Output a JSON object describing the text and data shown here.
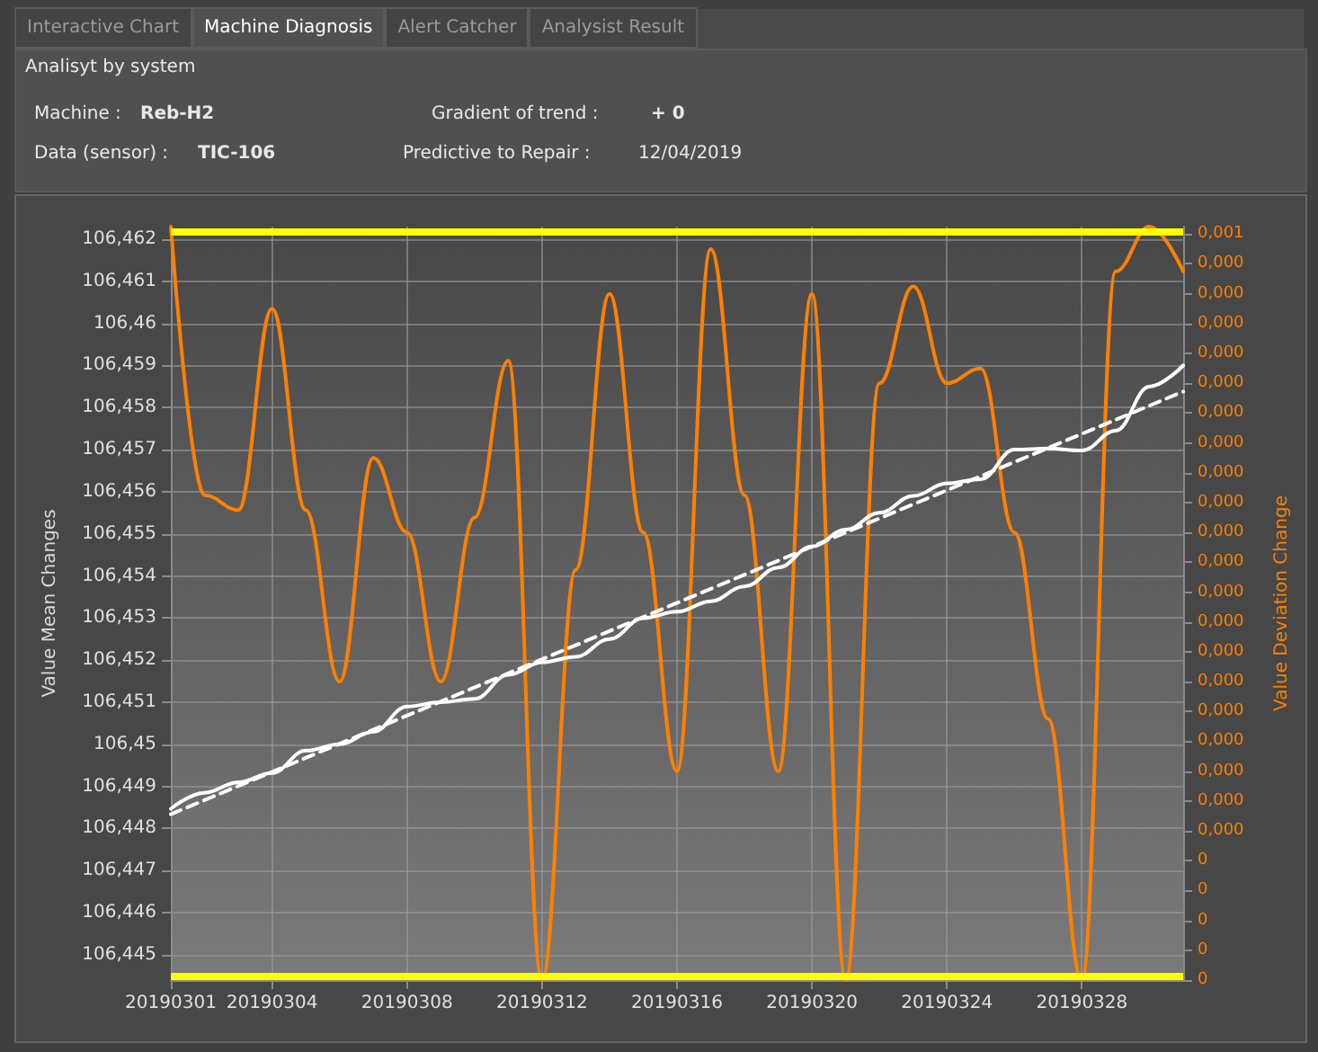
{
  "chart_data": {
    "type": "line",
    "ylabel": "Value Mean Changes",
    "y2label": "Value Deviation Change",
    "annotations": [
      "Interactive Chart",
      "Machine Diagnosis",
      "Alert Catcher",
      "Analysist Result",
      "Analisyt by system",
      "Machine :",
      "Reb-H2",
      "Gradient of trend :",
      "+ 0",
      "Data (sensor) :",
      "TIC-106",
      "Predictive to Repair :",
      "12/04/2019"
    ],
    "categories": [
      "20190301",
      null,
      null,
      "20190304",
      null,
      null,
      null,
      "20190308",
      null,
      null,
      null,
      "20190312",
      null,
      null,
      null,
      "20190316",
      null,
      null,
      null,
      "20190320",
      null,
      null,
      null,
      "20190324",
      null,
      null,
      null,
      "20190328",
      null,
      null,
      null
    ],
    "ylim": [
      106.4444,
      106.4623
    ],
    "yticks": [
      {
        "value": 106.445,
        "label": "106,445"
      },
      {
        "value": 106.446,
        "label": "106,446"
      },
      {
        "value": 106.447,
        "label": "106,447"
      },
      {
        "value": 106.448,
        "label": "106,448"
      },
      {
        "value": 106.449,
        "label": "106,449"
      },
      {
        "value": 106.45,
        "label": "106,45"
      },
      {
        "value": 106.451,
        "label": "106,451"
      },
      {
        "value": 106.452,
        "label": "106,452"
      },
      {
        "value": 106.453,
        "label": "106,453"
      },
      {
        "value": 106.454,
        "label": "106,454"
      },
      {
        "value": 106.455,
        "label": "106,455"
      },
      {
        "value": 106.456,
        "label": "106,456"
      },
      {
        "value": 106.457,
        "label": "106,457"
      },
      {
        "value": 106.458,
        "label": "106,458"
      },
      {
        "value": 106.459,
        "label": "106,459"
      },
      {
        "value": 106.46,
        "label": "106,46"
      },
      {
        "value": 106.461,
        "label": "106,461"
      },
      {
        "value": 106.462,
        "label": "106,462"
      }
    ],
    "y2lim": [
      0,
      0.000505
    ],
    "y2ticks": [
      {
        "value": 0,
        "label": "0"
      },
      {
        "value": 2e-05,
        "label": "0"
      },
      {
        "value": 4e-05,
        "label": "0"
      },
      {
        "value": 6e-05,
        "label": "0"
      },
      {
        "value": 8e-05,
        "label": "0"
      },
      {
        "value": 0.0001,
        "label": "0,000"
      },
      {
        "value": 0.00012,
        "label": "0,000"
      },
      {
        "value": 0.00014,
        "label": "0,000"
      },
      {
        "value": 0.00016,
        "label": "0,000"
      },
      {
        "value": 0.00018,
        "label": "0,000"
      },
      {
        "value": 0.0002,
        "label": "0,000"
      },
      {
        "value": 0.00022,
        "label": "0,000"
      },
      {
        "value": 0.00024,
        "label": "0,000"
      },
      {
        "value": 0.00026,
        "label": "0,000"
      },
      {
        "value": 0.00028,
        "label": "0,000"
      },
      {
        "value": 0.0003,
        "label": "0,000"
      },
      {
        "value": 0.00032,
        "label": "0,000"
      },
      {
        "value": 0.00034,
        "label": "0,000"
      },
      {
        "value": 0.00036,
        "label": "0,000"
      },
      {
        "value": 0.00038,
        "label": "0,000"
      },
      {
        "value": 0.0004,
        "label": "0,000"
      },
      {
        "value": 0.00042,
        "label": "0,000"
      },
      {
        "value": 0.00044,
        "label": "0,000"
      },
      {
        "value": 0.00046,
        "label": "0,000"
      },
      {
        "value": 0.00048,
        "label": "0,000"
      },
      {
        "value": 0.0005,
        "label": "0,001"
      }
    ],
    "grid": true,
    "marker": "none",
    "ref_lines": [
      {
        "axis": "y",
        "value": 106.4622,
        "color": "#ffff00"
      },
      {
        "axis": "y",
        "value": 106.4445,
        "color": "#ffff00"
      }
    ],
    "series": [
      {
        "color": "#ff8000",
        "axis": "y2",
        "line_style": "solid",
        "values": [
          0.000505,
          0.000325,
          0.000315,
          0.00045,
          0.000315,
          0.0002,
          0.00035,
          0.0003,
          0.0002,
          0.00031,
          0.000415,
          0,
          0.000275,
          0.00046,
          0.0003,
          0.00014,
          0.00049,
          0.000325,
          0.00014,
          0.00046,
          0,
          0.0004,
          0.000465,
          0.0004,
          0.00041,
          0.0003,
          0.000175,
          0,
          0.000475,
          0.000505,
          0.000475
        ]
      },
      {
        "color": "#ffffff",
        "line_style": "solid",
        "values": [
          106.44847,
          106.44885,
          106.4491,
          106.44932,
          106.44985,
          106.45,
          106.4503,
          106.4509,
          106.451,
          106.45108,
          106.45165,
          106.45195,
          106.45208,
          106.4525,
          106.453,
          106.45315,
          106.4534,
          106.45375,
          106.4542,
          106.4547,
          106.4551,
          106.4555,
          106.4559,
          106.4562,
          106.4563,
          106.457,
          106.45703,
          106.45698,
          106.45745,
          106.4585,
          106.459
        ]
      },
      {
        "color": "#ffffff",
        "line_style": "dashed",
        "values": [
          106.44834,
          null,
          null,
          null,
          null,
          null,
          null,
          null,
          null,
          null,
          null,
          null,
          null,
          null,
          null,
          null,
          null,
          null,
          null,
          null,
          null,
          null,
          null,
          null,
          null,
          null,
          null,
          null,
          null,
          null,
          106.45838
        ]
      }
    ]
  }
}
